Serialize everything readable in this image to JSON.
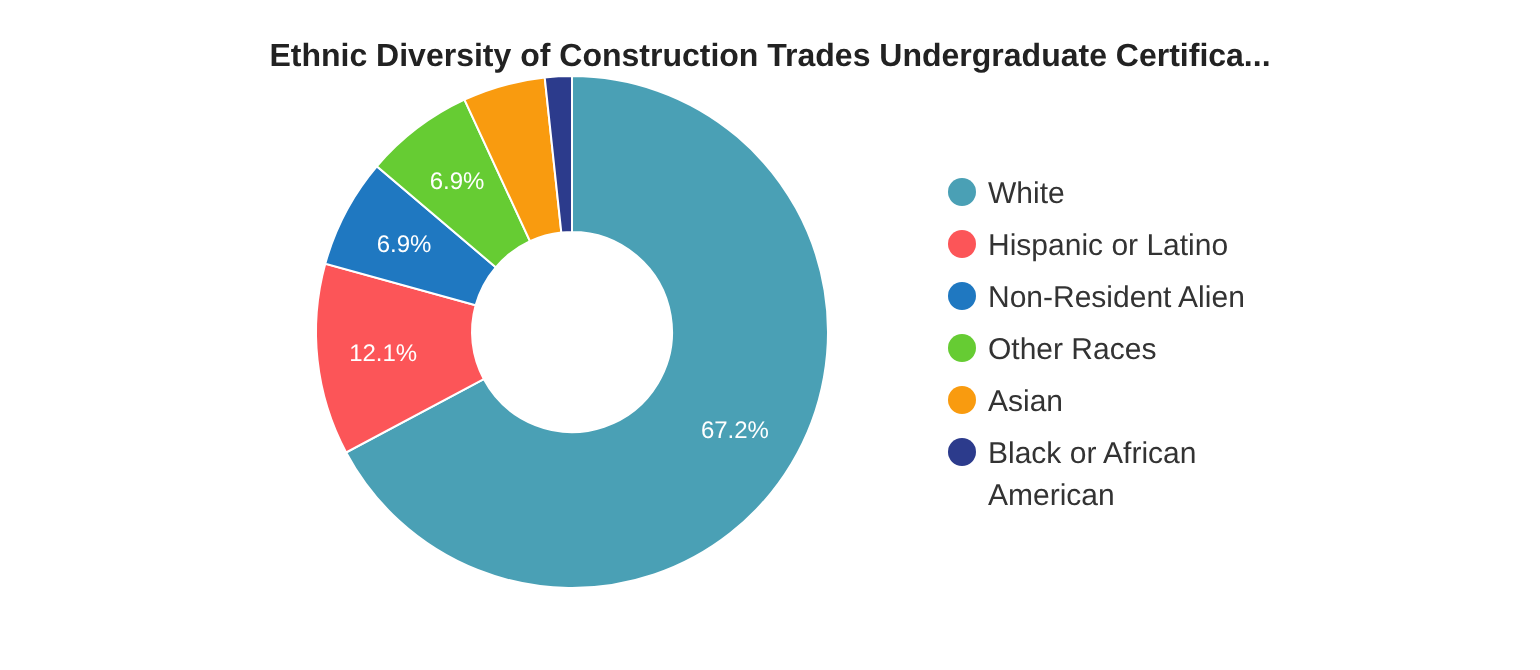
{
  "chart_data": {
    "type": "donut",
    "title": "Ethnic Diversity of Construction Trades Undergraduate Certifica...",
    "categories": [
      "White",
      "Hispanic or Latino",
      "Non-Resident Alien",
      "Other Races",
      "Asian",
      "Black or African American"
    ],
    "values": [
      67.2,
      12.1,
      6.9,
      6.9,
      5.2,
      1.7
    ],
    "colors": [
      "#4aa0b5",
      "#fc5558",
      "#1f78c1",
      "#66cc33",
      "#f99b0f",
      "#2c3b8c"
    ],
    "value_labels": [
      "67.2%",
      "12.1%",
      "6.9%",
      "6.9%",
      null,
      null
    ],
    "legend": "right"
  }
}
